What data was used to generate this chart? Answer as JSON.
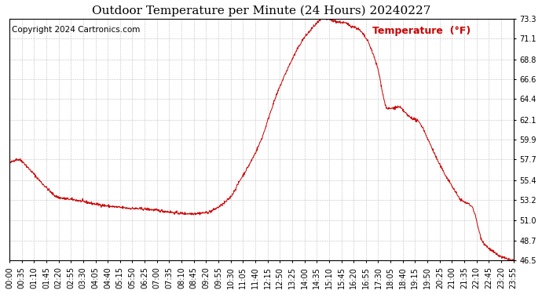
{
  "title": "Outdoor Temperature per Minute (24 Hours) 20240227",
  "copyright_text": "Copyright 2024 Cartronics.com",
  "legend_label": "Temperature  (°F)",
  "line_color": "#cc0000",
  "background_color": "#ffffff",
  "grid_color": "#b0b0b0",
  "ylim": [
    46.5,
    73.3
  ],
  "yticks": [
    46.5,
    48.7,
    51.0,
    53.2,
    55.4,
    57.7,
    59.9,
    62.1,
    64.4,
    66.6,
    68.8,
    71.1,
    73.3
  ],
  "x_tick_labels": [
    "00:00",
    "00:35",
    "01:10",
    "01:45",
    "02:20",
    "02:55",
    "03:30",
    "04:05",
    "04:40",
    "05:15",
    "05:50",
    "06:25",
    "07:00",
    "07:35",
    "08:10",
    "08:45",
    "09:20",
    "09:55",
    "10:30",
    "11:05",
    "11:40",
    "12:15",
    "12:50",
    "13:25",
    "14:00",
    "14:35",
    "15:10",
    "15:45",
    "16:20",
    "16:55",
    "17:30",
    "18:05",
    "18:40",
    "19:15",
    "19:50",
    "20:25",
    "21:00",
    "21:35",
    "22:10",
    "22:45",
    "23:20",
    "23:55"
  ],
  "control_times": [
    0,
    25,
    60,
    100,
    140,
    190,
    240,
    290,
    340,
    390,
    435,
    455,
    470,
    510,
    560,
    600,
    630,
    660,
    690,
    720,
    750,
    780,
    810,
    840,
    855,
    870,
    900,
    930,
    960,
    975,
    990,
    1020,
    1050,
    1080,
    1110,
    1140,
    1170,
    1200,
    1230,
    1260,
    1290,
    1320,
    1350,
    1380,
    1410,
    1439
  ],
  "control_temps": [
    57.2,
    57.7,
    56.5,
    54.8,
    53.5,
    53.2,
    52.8,
    52.5,
    52.3,
    52.2,
    52.0,
    51.9,
    51.8,
    51.7,
    51.8,
    52.5,
    53.5,
    55.5,
    57.5,
    60.0,
    63.5,
    66.5,
    69.0,
    71.1,
    71.8,
    72.5,
    73.3,
    73.0,
    72.8,
    72.5,
    72.3,
    71.0,
    68.0,
    63.3,
    63.5,
    62.5,
    61.8,
    59.5,
    57.0,
    55.0,
    53.2,
    52.5,
    48.7,
    47.5,
    46.8,
    46.5
  ],
  "title_fontsize": 11,
  "tick_fontsize": 7,
  "copyright_fontsize": 7.5,
  "legend_fontsize": 9
}
